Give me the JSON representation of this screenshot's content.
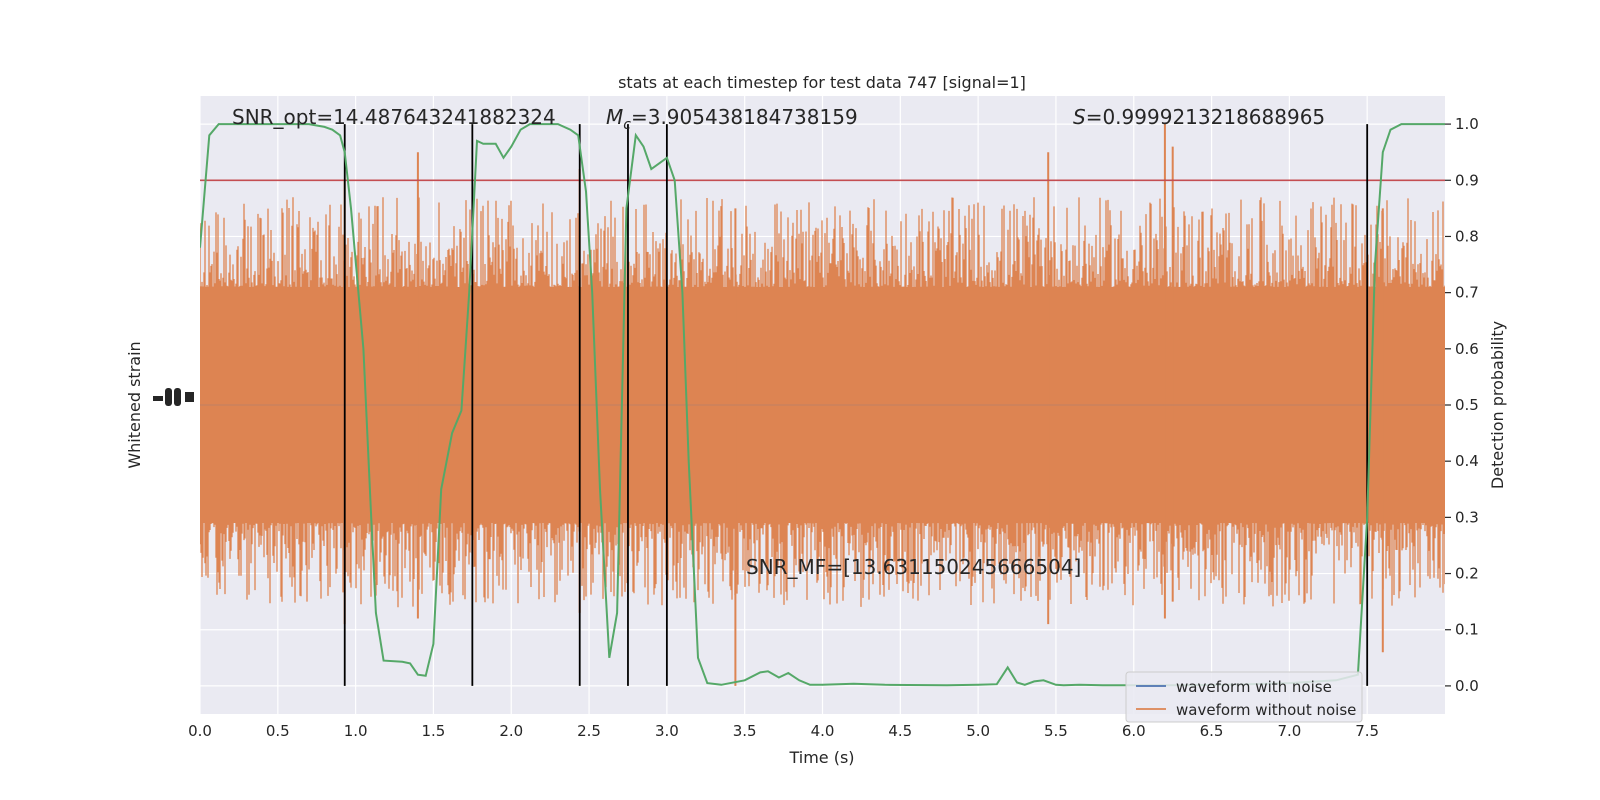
{
  "chart_data": {
    "type": "line",
    "title": "stats at each timestep for test data 747 [signal=1]",
    "xlabel": "Time (s)",
    "ylabel_left": "Whitened strain",
    "ylabel_right": "Detection probability",
    "xlim": [
      0.0,
      8.0
    ],
    "x_ticks": [
      0.0,
      0.5,
      1.0,
      1.5,
      2.0,
      2.5,
      3.0,
      3.5,
      4.0,
      4.5,
      5.0,
      5.5,
      6.0,
      6.5,
      7.0,
      7.5
    ],
    "x_tick_labels": [
      "0.0",
      "0.5",
      "1.0",
      "1.5",
      "2.0",
      "2.5",
      "3.0",
      "3.5",
      "4.0",
      "4.5",
      "5.0",
      "5.5",
      "6.0",
      "6.5",
      "7.0",
      "7.5"
    ],
    "right_ylim": [
      -0.05,
      1.05
    ],
    "right_y_ticks": [
      0.0,
      0.1,
      0.2,
      0.3,
      0.4,
      0.5,
      0.6,
      0.7,
      0.8,
      0.9,
      1.0
    ],
    "right_y_tick_labels": [
      "0.0",
      "0.1",
      "0.2",
      "0.3",
      "0.4",
      "0.5",
      "0.6",
      "0.7",
      "0.8",
      "0.9",
      "1.0"
    ],
    "grid": true,
    "legend_position": "lower-right",
    "colors": {
      "waveform_with_noise": "#4c72b0",
      "waveform_without_noise": "#dd8452",
      "detection_probability": "#55a868",
      "threshold": "#c44e52",
      "background": "#eaeaf2",
      "event_lines": "#000000"
    },
    "threshold": 0.9,
    "event_lines_x": [
      0.93,
      1.75,
      2.44,
      2.75,
      3.0,
      7.5
    ],
    "annotations": {
      "snr_opt": "SNR_opt=14.487643241882324",
      "mc_symbol": "M",
      "mc_subscript": "c",
      "mc_value": "=3.905438184738159",
      "s_symbol": "S",
      "s_value": "=0.9999213218688965",
      "snr_mf": "SNR_MF=[13.631150245666504]"
    },
    "series": [
      {
        "name": "waveform with noise",
        "description_kind": "strain",
        "values_note": "flat line hidden beneath the orange waveform"
      },
      {
        "name": "waveform without noise",
        "description_kind": "strain",
        "core_band_prob": [
          0.3,
          0.7
        ],
        "typical_spike_range_prob": [
          0.15,
          0.86
        ],
        "spikes": [
          {
            "t": 0.93,
            "hi": 0.9,
            "lo": 0.11
          },
          {
            "t": 1.4,
            "hi": 0.95,
            "lo": 0.12
          },
          {
            "t": 2.44,
            "hi": 0.92,
            "lo": 0.13
          },
          {
            "t": 3.44,
            "hi": 0.85,
            "lo": 0.0
          },
          {
            "t": 5.45,
            "hi": 0.95,
            "lo": 0.11
          },
          {
            "t": 6.2,
            "hi": 1.0,
            "lo": 0.12
          },
          {
            "t": 6.25,
            "hi": 0.96,
            "lo": 0.15
          },
          {
            "t": 7.6,
            "hi": 0.85,
            "lo": 0.06
          }
        ]
      },
      {
        "name": "Detection probability",
        "x": [
          0.0,
          0.06,
          0.12,
          0.3,
          0.5,
          0.7,
          0.8,
          0.85,
          0.9,
          0.93,
          0.97,
          1.05,
          1.1,
          1.13,
          1.18,
          1.3,
          1.35,
          1.4,
          1.45,
          1.5,
          1.55,
          1.62,
          1.68,
          1.73,
          1.78,
          1.82,
          1.9,
          1.95,
          2.0,
          2.06,
          2.12,
          2.2,
          2.3,
          2.38,
          2.43,
          2.48,
          2.52,
          2.57,
          2.63,
          2.68,
          2.74,
          2.8,
          2.85,
          2.9,
          2.95,
          3.0,
          3.05,
          3.1,
          3.14,
          3.2,
          3.26,
          3.35,
          3.5,
          3.6,
          3.65,
          3.72,
          3.78,
          3.85,
          3.92,
          4.0,
          4.1,
          4.2,
          4.4,
          4.8,
          5.0,
          5.12,
          5.19,
          5.25,
          5.3,
          5.36,
          5.42,
          5.5,
          5.55,
          5.65,
          5.8,
          6.0,
          6.3,
          6.6,
          7.0,
          7.3,
          7.44,
          7.5,
          7.55,
          7.6,
          7.65,
          7.72,
          7.8,
          8.0
        ],
        "y": [
          0.78,
          0.98,
          1.0,
          1.0,
          1.0,
          1.0,
          0.995,
          0.99,
          0.98,
          0.95,
          0.85,
          0.6,
          0.3,
          0.13,
          0.045,
          0.043,
          0.04,
          0.02,
          0.018,
          0.075,
          0.35,
          0.45,
          0.49,
          0.7,
          0.97,
          0.965,
          0.965,
          0.94,
          0.96,
          0.99,
          1.0,
          1.0,
          1.0,
          0.99,
          0.98,
          0.88,
          0.7,
          0.35,
          0.05,
          0.13,
          0.85,
          0.98,
          0.96,
          0.92,
          0.93,
          0.94,
          0.9,
          0.7,
          0.4,
          0.05,
          0.005,
          0.002,
          0.01,
          0.024,
          0.026,
          0.015,
          0.023,
          0.01,
          0.002,
          0.002,
          0.003,
          0.004,
          0.002,
          0.001,
          0.002,
          0.003,
          0.033,
          0.006,
          0.002,
          0.008,
          0.01,
          0.002,
          0.001,
          0.002,
          0.001,
          0.001,
          0.001,
          0.002,
          0.005,
          0.01,
          0.02,
          0.3,
          0.75,
          0.95,
          0.99,
          1.0,
          1.0,
          1.0
        ]
      }
    ],
    "legend": [
      {
        "label": "waveform with noise",
        "color": "#4c72b0"
      },
      {
        "label": "waveform without noise",
        "color": "#dd8452"
      }
    ]
  }
}
